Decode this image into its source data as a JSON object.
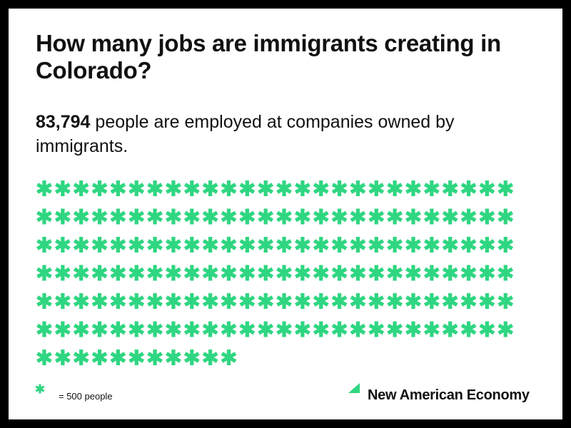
{
  "chart_data": {
    "type": "pictogram",
    "title": "How many jobs are immigrants creating in Colorado?",
    "value": 83794,
    "value_label": "83,794",
    "subtitle": "people are employed at companies owned by immigrants.",
    "unit_value": 500,
    "legend_label": "= 500 people",
    "color": "#2fd681",
    "source": "New American Economy"
  }
}
